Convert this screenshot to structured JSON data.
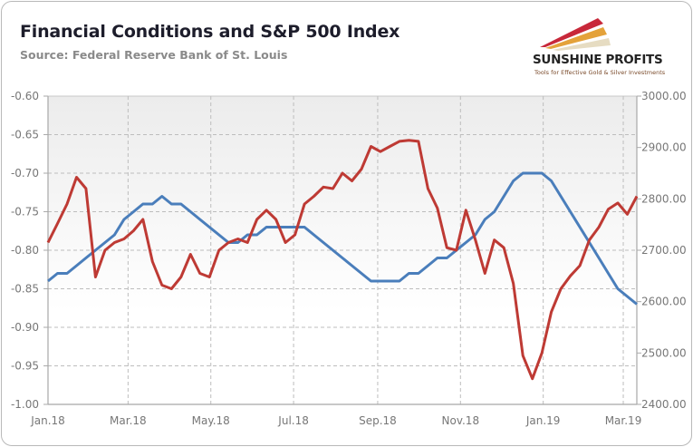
{
  "chart_data": {
    "type": "line",
    "title": "Financial Conditions and S&P 500 Index",
    "subtitle": "Source: Federal Reserve Bank of St. Louis",
    "x": [
      "2018-01-05",
      "2018-01-12",
      "2018-01-19",
      "2018-01-26",
      "2018-02-02",
      "2018-02-09",
      "2018-02-16",
      "2018-02-23",
      "2018-03-02",
      "2018-03-09",
      "2018-03-16",
      "2018-03-23",
      "2018-03-30",
      "2018-04-06",
      "2018-04-13",
      "2018-04-20",
      "2018-04-27",
      "2018-05-04",
      "2018-05-11",
      "2018-05-18",
      "2018-05-25",
      "2018-06-01",
      "2018-06-08",
      "2018-06-15",
      "2018-06-22",
      "2018-06-29",
      "2018-07-06",
      "2018-07-13",
      "2018-07-20",
      "2018-07-27",
      "2018-08-03",
      "2018-08-10",
      "2018-08-17",
      "2018-08-24",
      "2018-08-31",
      "2018-09-07",
      "2018-09-14",
      "2018-09-21",
      "2018-09-28",
      "2018-10-05",
      "2018-10-12",
      "2018-10-19",
      "2018-10-26",
      "2018-11-02",
      "2018-11-09",
      "2018-11-16",
      "2018-11-23",
      "2018-11-30",
      "2018-12-07",
      "2018-12-14",
      "2018-12-21",
      "2018-12-28",
      "2019-01-04",
      "2019-01-11",
      "2019-01-18",
      "2019-01-25",
      "2019-02-01",
      "2019-02-08",
      "2019-02-15",
      "2019-02-22",
      "2019-03-01",
      "2019-03-08",
      "2019-03-15"
    ],
    "xlim": [
      "2018-01-05",
      "2019-03-15"
    ],
    "xticks": [
      {
        "label": "Jan.18",
        "date": "2018-01-05"
      },
      {
        "label": "Mar.18",
        "date": "2018-03-05"
      },
      {
        "label": "May.18",
        "date": "2018-05-05"
      },
      {
        "label": "Jul.18",
        "date": "2018-07-05"
      },
      {
        "label": "Sep.18",
        "date": "2018-09-05"
      },
      {
        "label": "Nov.18",
        "date": "2018-11-05"
      },
      {
        "label": "Jan.19",
        "date": "2019-01-05"
      },
      {
        "label": "Mar.19",
        "date": "2019-03-05"
      }
    ],
    "y_left": {
      "ylim": [
        -1.0,
        -0.6
      ],
      "ticks": [
        "-0.60",
        "-0.65",
        "-0.70",
        "-0.75",
        "-0.80",
        "-0.85",
        "-0.90",
        "-0.95",
        "-1.00"
      ]
    },
    "y_right": {
      "ylim": [
        2400,
        3000
      ],
      "ticks": [
        "3000.00",
        "2900.00",
        "2800.00",
        "2700.00",
        "2600.00",
        "2500.00",
        "2400.00"
      ]
    },
    "grid": true,
    "legend": "none",
    "series": [
      {
        "axis": "left",
        "color": "#4a7ebb",
        "values": [
          -0.84,
          -0.83,
          -0.83,
          -0.82,
          -0.81,
          -0.8,
          -0.79,
          -0.78,
          -0.76,
          -0.75,
          -0.74,
          -0.74,
          -0.73,
          -0.74,
          -0.74,
          -0.75,
          -0.76,
          -0.77,
          -0.78,
          -0.79,
          -0.79,
          -0.78,
          -0.78,
          -0.77,
          -0.77,
          -0.77,
          -0.77,
          -0.77,
          -0.78,
          -0.79,
          -0.8,
          -0.81,
          -0.82,
          -0.83,
          -0.84,
          -0.84,
          -0.84,
          -0.84,
          -0.83,
          -0.83,
          -0.82,
          -0.81,
          -0.81,
          -0.8,
          -0.79,
          -0.78,
          -0.76,
          -0.75,
          -0.73,
          -0.71,
          -0.7,
          -0.7,
          -0.7,
          -0.71,
          -0.73,
          -0.75,
          -0.77,
          -0.79,
          -0.81,
          -0.83,
          -0.85,
          -0.86,
          -0.87
        ]
      },
      {
        "axis": "right",
        "color": "#be3a34",
        "values": [
          2715,
          2752,
          2790,
          2842,
          2820,
          2648,
          2700,
          2715,
          2722,
          2738,
          2760,
          2678,
          2632,
          2625,
          2648,
          2692,
          2655,
          2648,
          2700,
          2715,
          2722,
          2715,
          2760,
          2778,
          2760,
          2715,
          2730,
          2790,
          2805,
          2823,
          2820,
          2850,
          2835,
          2858,
          2902,
          2892,
          2902,
          2912,
          2914,
          2912,
          2820,
          2782,
          2705,
          2700,
          2778,
          2720,
          2655,
          2720,
          2705,
          2635,
          2495,
          2450,
          2500,
          2580,
          2625,
          2650,
          2670,
          2720,
          2745,
          2780,
          2792,
          2770,
          2805
        ]
      }
    ]
  },
  "logo": {
    "name": "SUNSHINE PROFITS",
    "tagline": "Tools for Effective Gold & Silver Investments"
  }
}
